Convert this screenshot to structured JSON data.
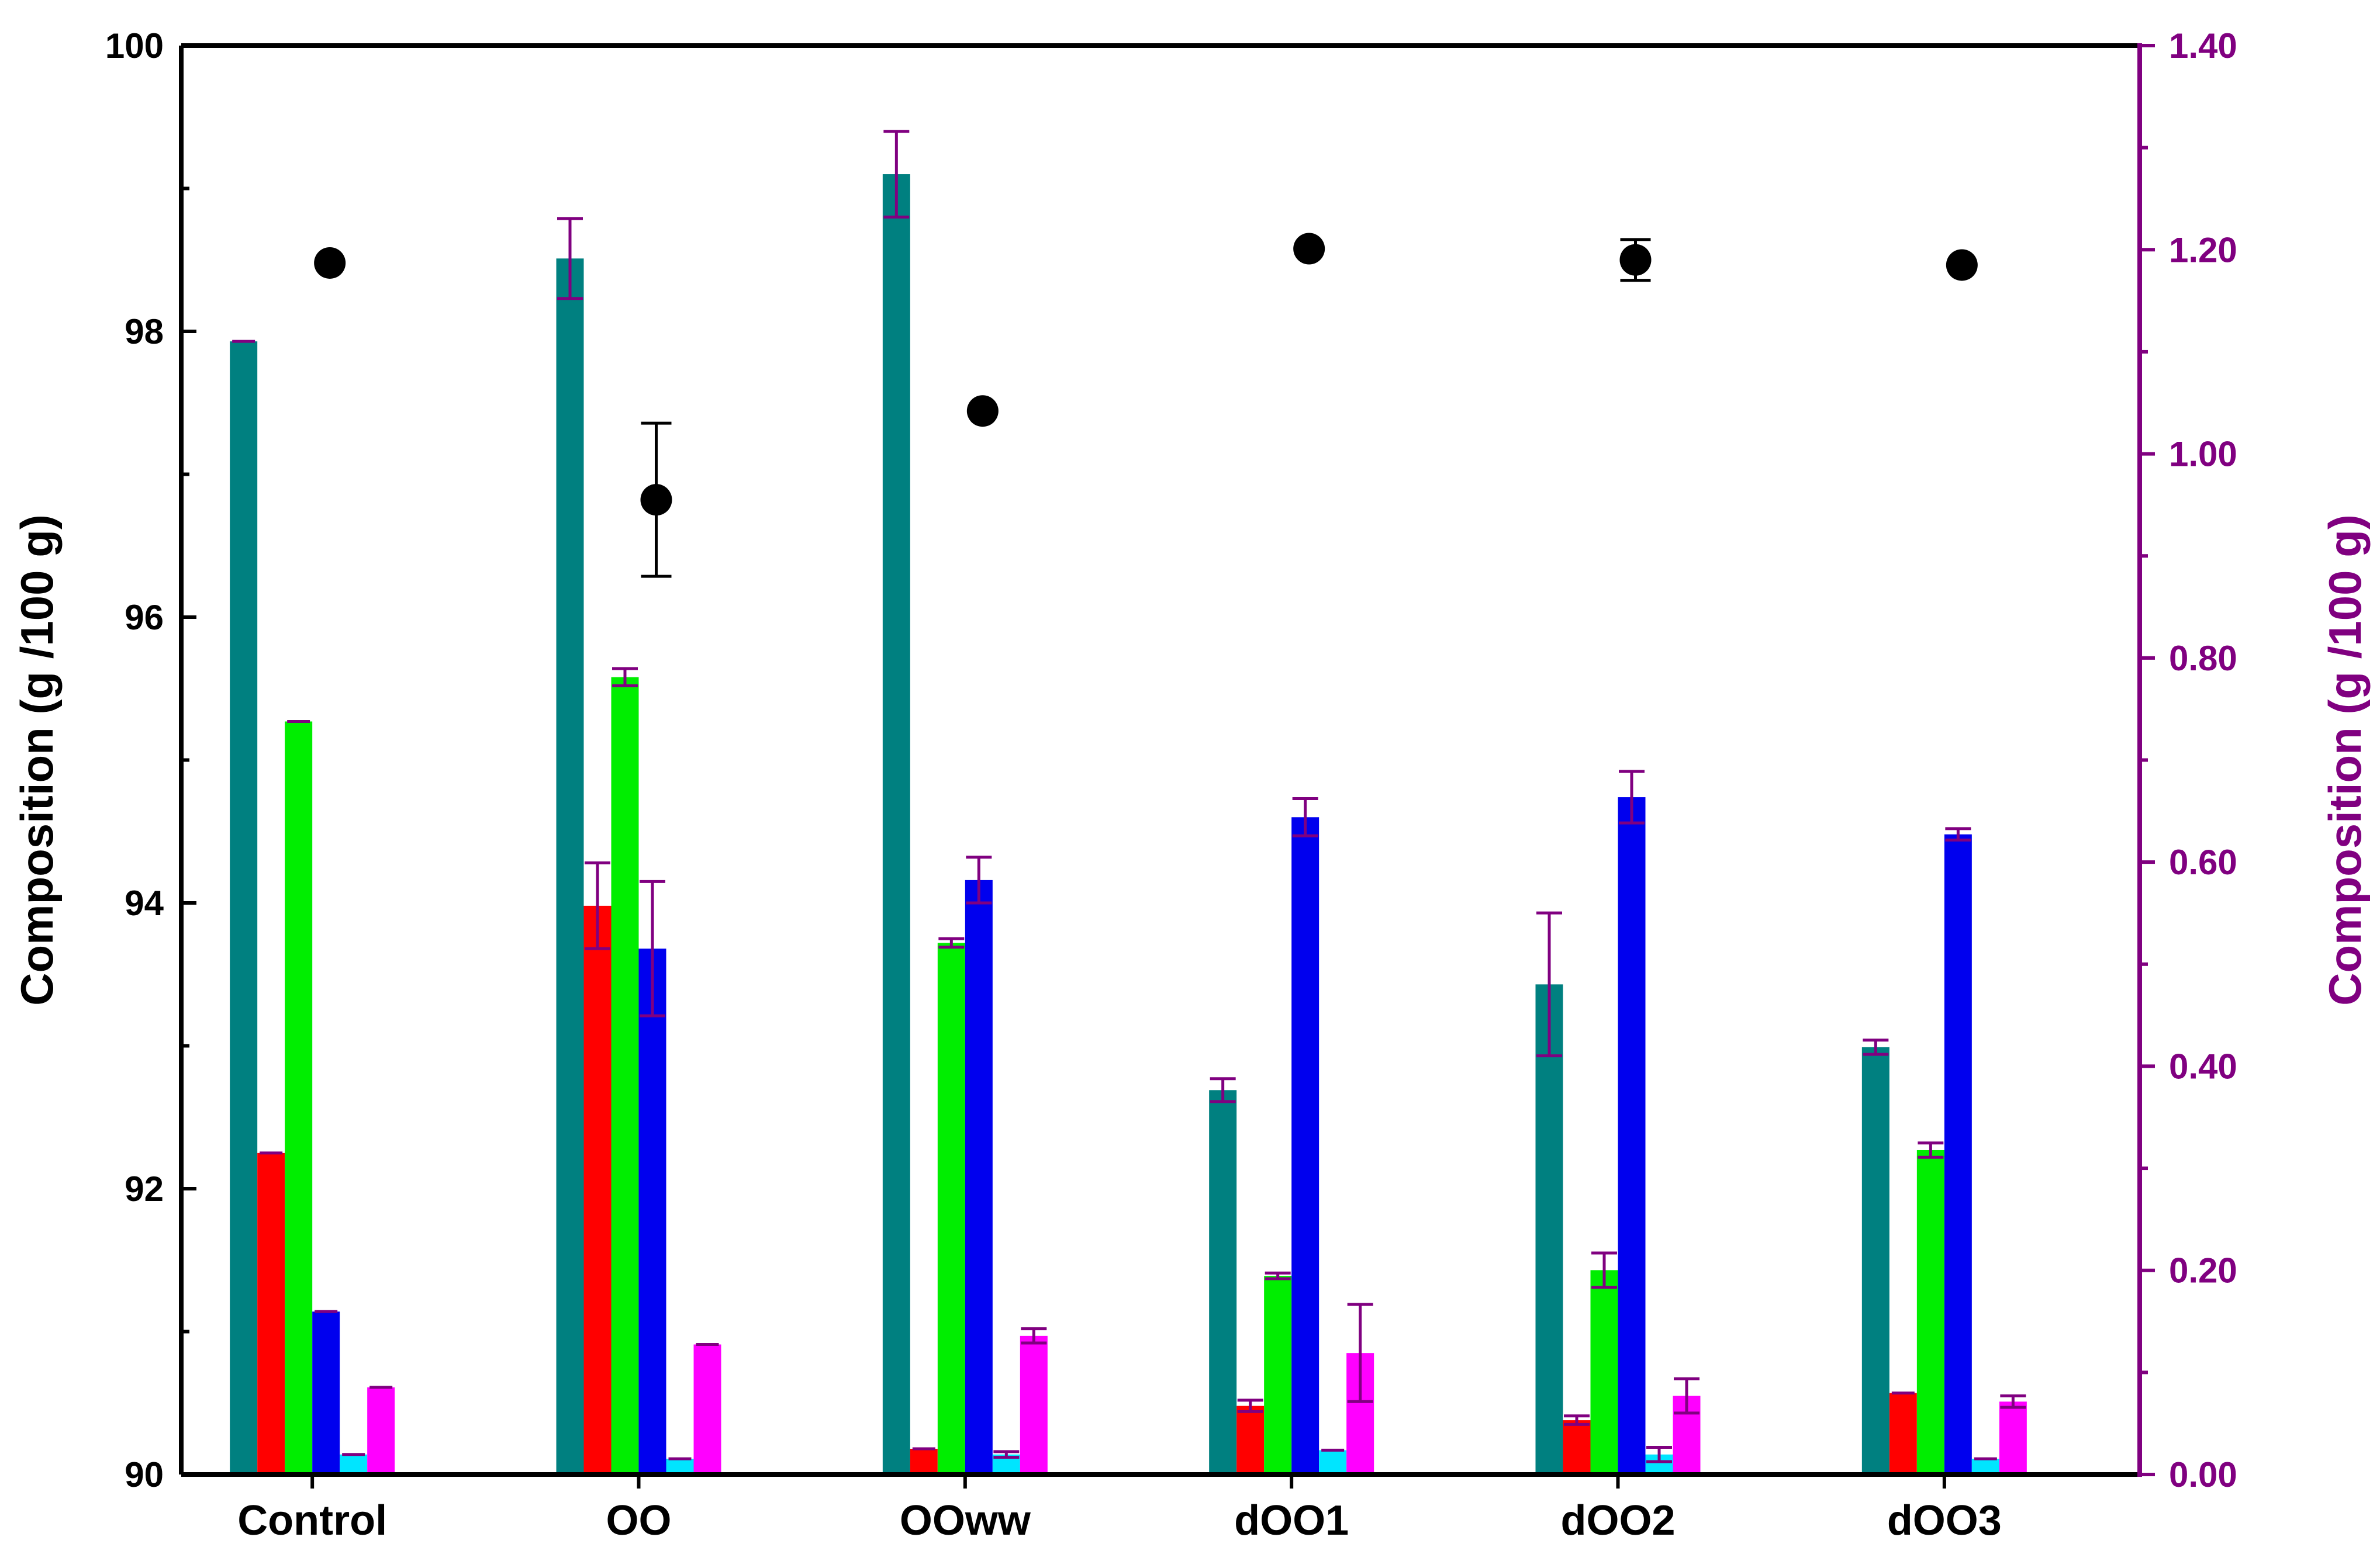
{
  "chart_data": {
    "type": "bar",
    "categories": [
      "Control",
      "OO",
      "OOww",
      "dOO1",
      "dOO2",
      "dOO3"
    ],
    "left_axis": {
      "label": "Composition (g /100 g)",
      "ylim": [
        90,
        100
      ],
      "ticks": [
        "90",
        "92",
        "94",
        "96",
        "98",
        "100"
      ],
      "color": "#000000"
    },
    "right_axis": {
      "label": "Composition (g /100 g)",
      "ylim": [
        0,
        1.4
      ],
      "ticks": [
        "0.00",
        "0.20",
        "0.40",
        "0.60",
        "0.80",
        "1.00",
        "1.20",
        "1.40"
      ],
      "color": "#800080"
    },
    "series": [
      {
        "color": "#008080",
        "axis": "left",
        "values": [
          97.93,
          98.51,
          99.1,
          92.69,
          93.43,
          92.99
        ],
        "errors": [
          0,
          0.28,
          0.3,
          0.08,
          0.5,
          0.05
        ]
      },
      {
        "color": "#ff0000",
        "axis": "left",
        "values": [
          92.25,
          93.98,
          90.18,
          90.48,
          90.38,
          90.57
        ],
        "errors": [
          0,
          0.3,
          0,
          0.04,
          0.03,
          0
        ]
      },
      {
        "color": "#00ee00",
        "axis": "left",
        "values": [
          95.27,
          95.58,
          93.72,
          91.39,
          91.43,
          92.27
        ],
        "errors": [
          0,
          0.06,
          0.03,
          0.02,
          0.12,
          0.05
        ]
      },
      {
        "color": "#0000ee",
        "axis": "left",
        "values": [
          91.14,
          93.68,
          94.16,
          94.6,
          94.74,
          94.48
        ],
        "errors": [
          0,
          0.47,
          0.16,
          0.13,
          0.18,
          0.04
        ]
      },
      {
        "color": "#00e5ff",
        "axis": "left",
        "values": [
          90.14,
          90.11,
          90.14,
          90.17,
          90.14,
          90.11
        ],
        "errors": [
          0,
          0,
          0.02,
          0,
          0.05,
          0
        ]
      },
      {
        "color": "#ff00ff",
        "axis": "left",
        "values": [
          90.61,
          90.91,
          90.97,
          90.85,
          90.55,
          90.51
        ],
        "errors": [
          0,
          0,
          0.05,
          0.34,
          0.12,
          0.04
        ]
      }
    ],
    "points": {
      "color": "#000000",
      "axis": "right",
      "values": [
        1.187,
        0.955,
        1.042,
        1.201,
        1.19,
        1.185
      ],
      "errors": [
        0,
        0.075,
        0,
        0,
        0.02,
        0
      ]
    },
    "error_bar_color": "#800080",
    "grid": false,
    "legend": "none"
  }
}
